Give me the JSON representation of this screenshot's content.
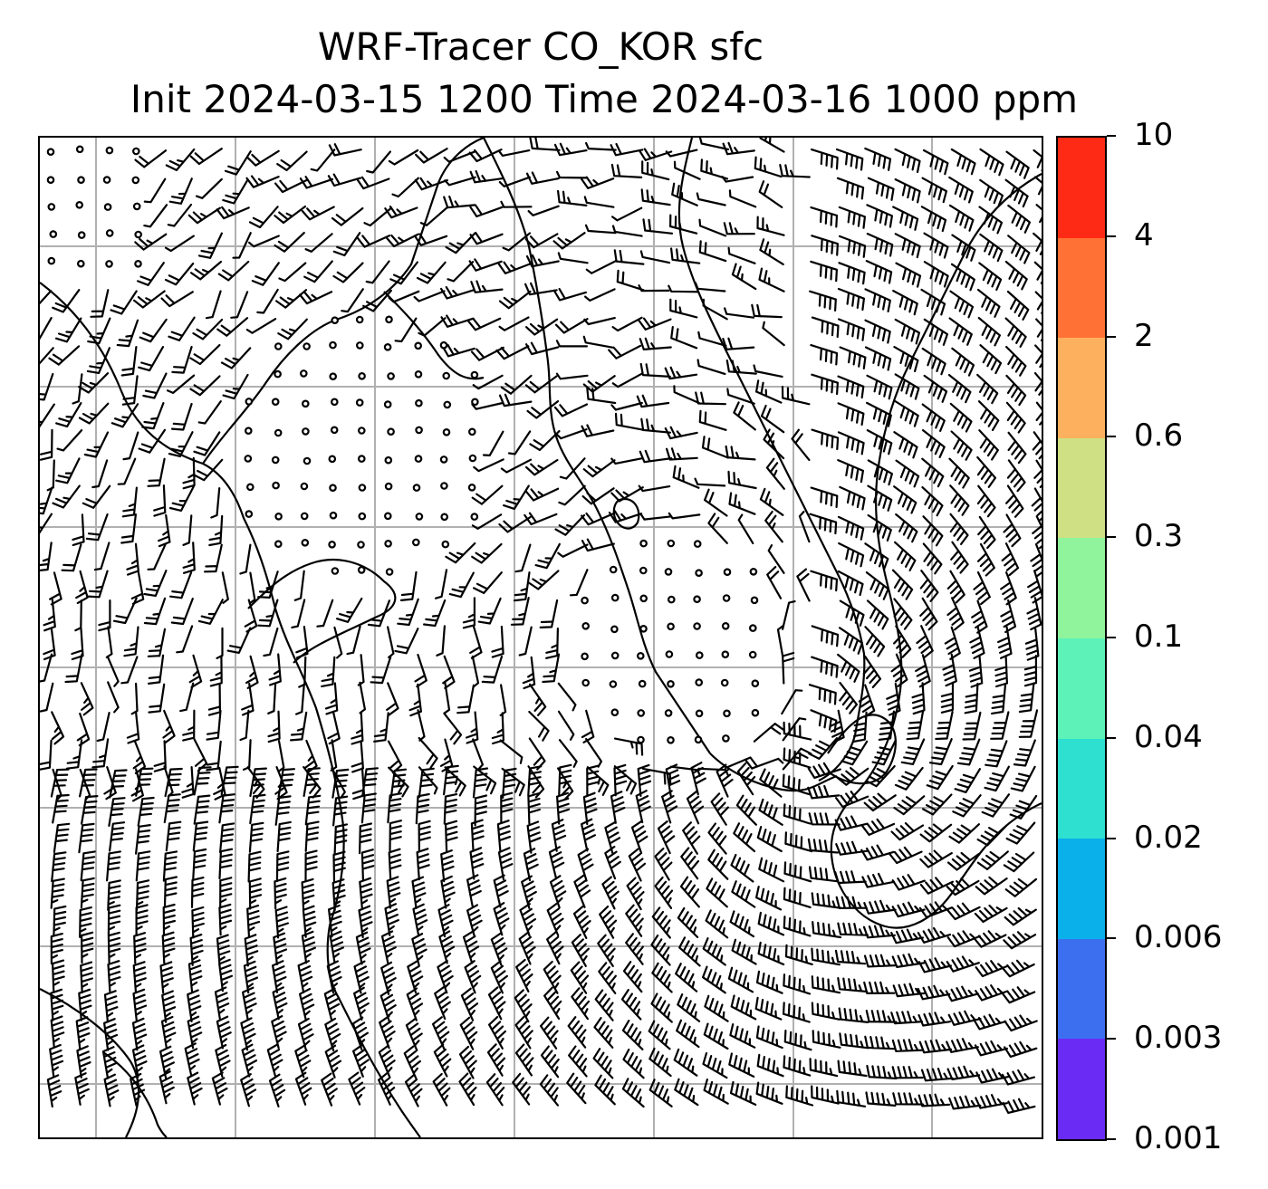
{
  "title": {
    "line1": "WRF-Tracer CO_KOR sfc",
    "line2": "Init 2024-03-15 1200 Time 2024-03-16 1000 ppm"
  },
  "colorbar": {
    "ticks": [
      "0.001",
      "0.003",
      "0.006",
      "0.02",
      "0.04",
      "0.1",
      "0.3",
      "0.6",
      "2",
      "4",
      "10"
    ],
    "colors": [
      "#6a2cf5",
      "#3c6ff0",
      "#09b0ea",
      "#2de0cf",
      "#5cf2b8",
      "#8ff49b",
      "#cfe084",
      "#fdb05e",
      "#ff7135",
      "#ff2a15"
    ]
  },
  "map": {
    "gridline_color": "#b0b0b0",
    "coastline_color": "#000000",
    "symbol_set": [
      "wind-barb",
      "calm-circle"
    ]
  }
}
